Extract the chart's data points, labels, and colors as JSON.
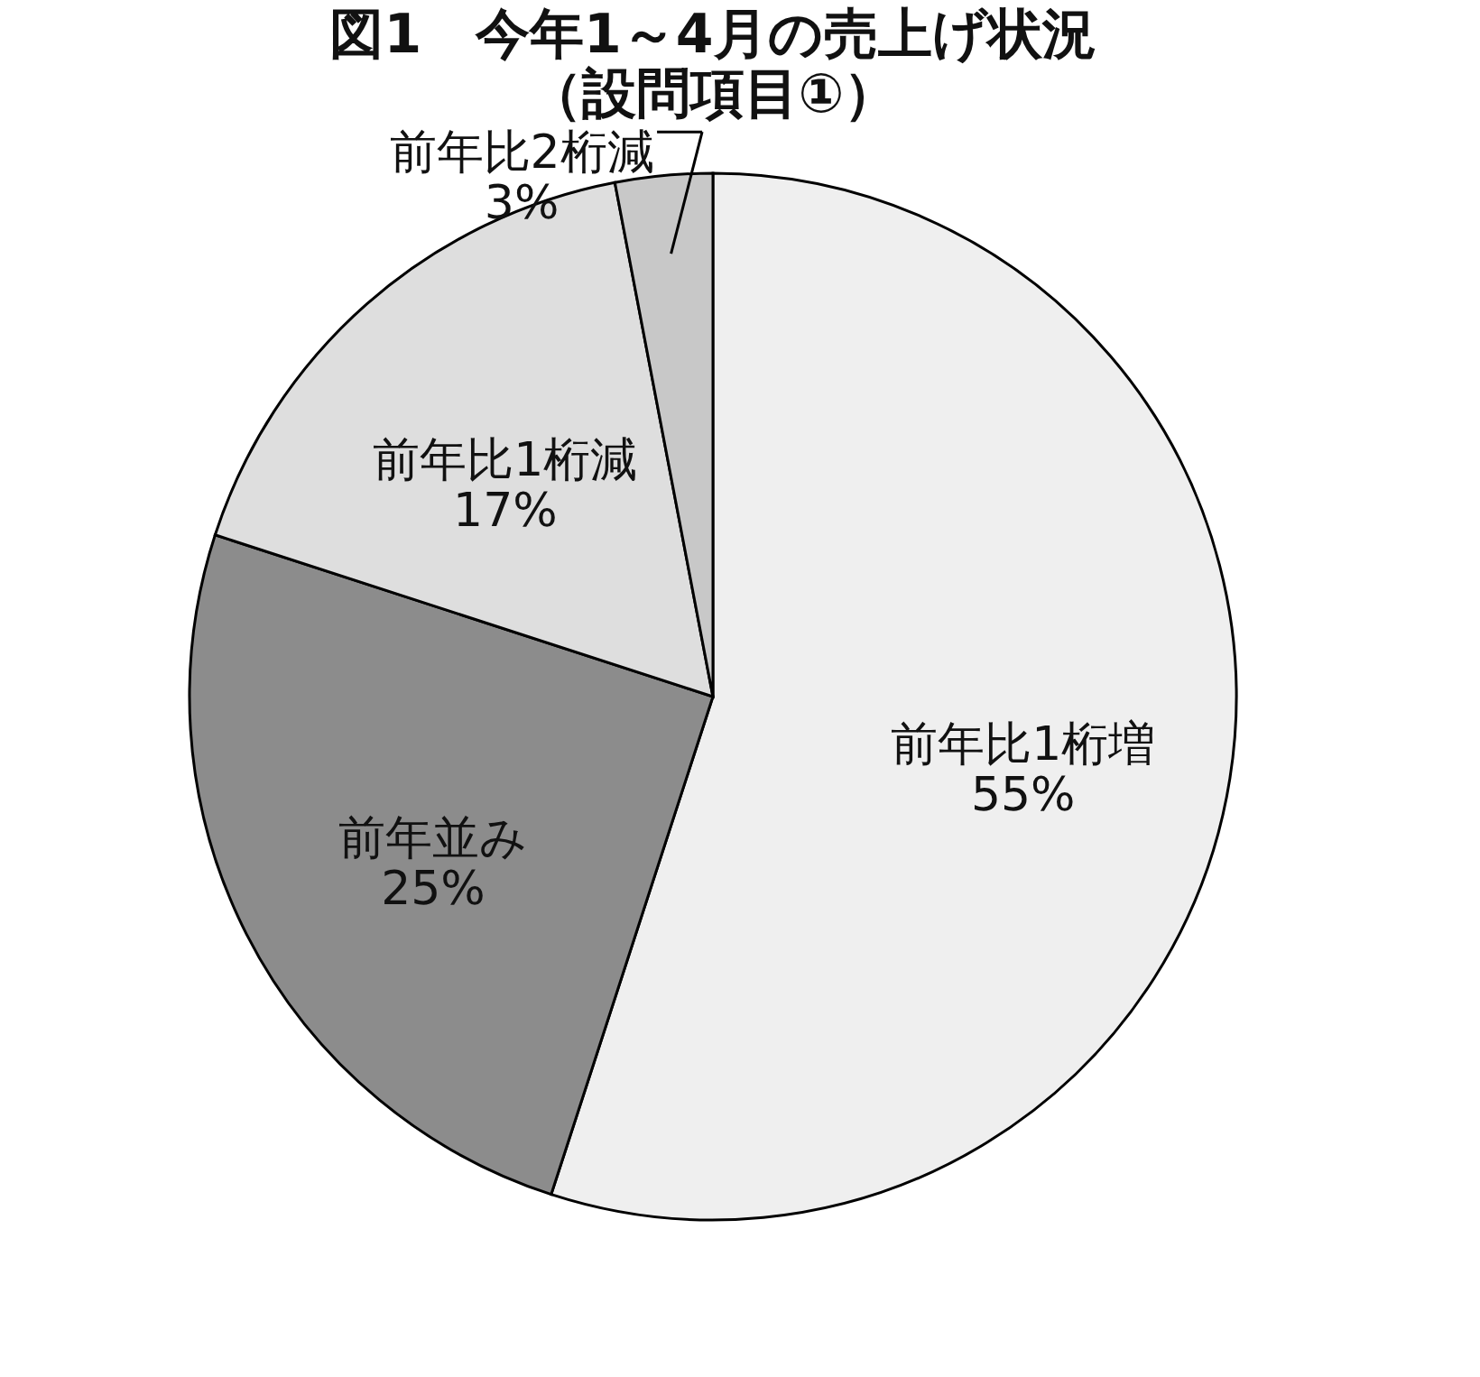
{
  "chart_data": {
    "type": "pie",
    "title": "図1　今年1～4月の売上げ状況",
    "subtitle": "（設問項目①）",
    "categories": [
      "前年比1桁増",
      "前年並み",
      "前年比1桁減",
      "前年比2桁減"
    ],
    "values": [
      55,
      25,
      17,
      3
    ],
    "colors": [
      "#efefef",
      "#8c8c8c",
      "#dedede",
      "#c8c8c8"
    ],
    "value_labels": [
      "55%",
      "25%",
      "17%",
      "3%"
    ],
    "legend": false
  }
}
